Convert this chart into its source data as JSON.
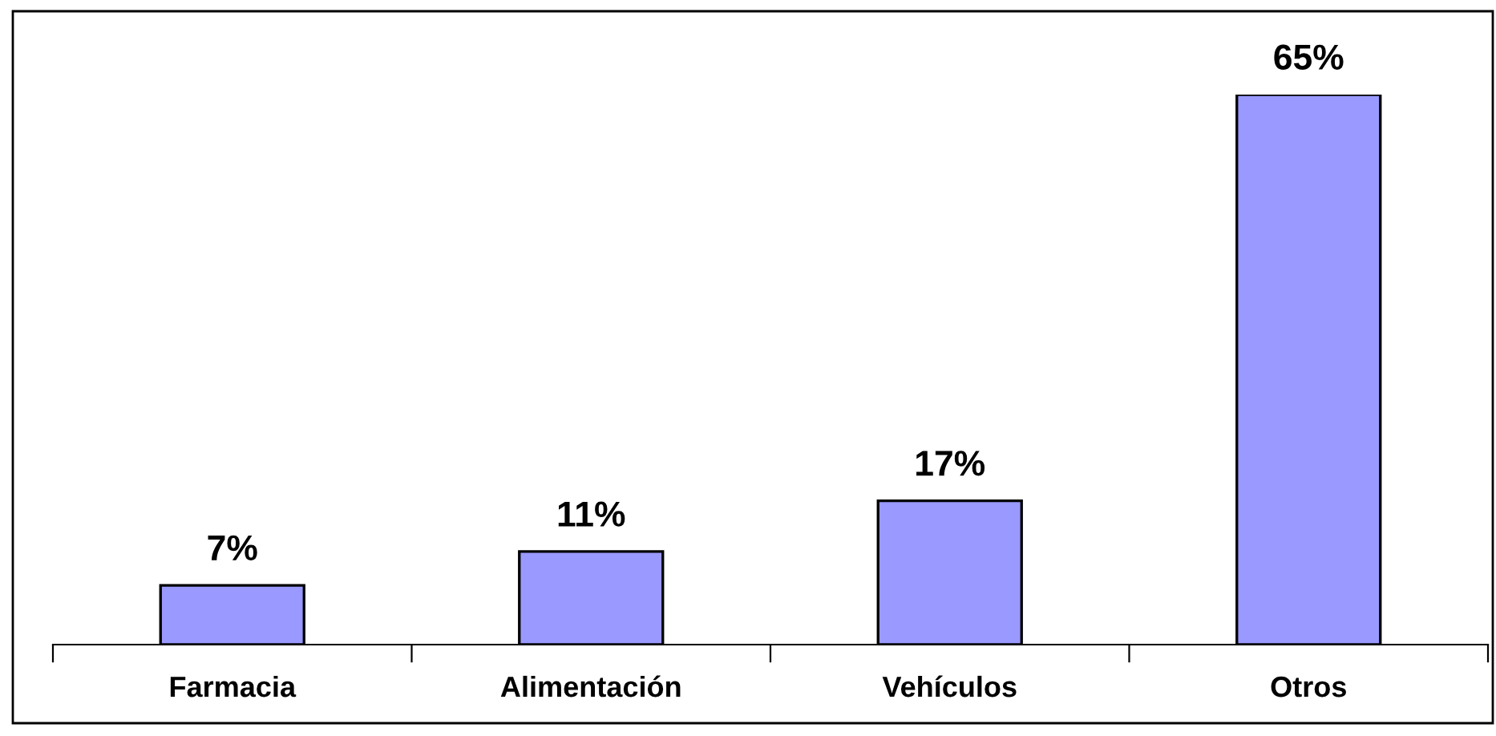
{
  "chart_data": {
    "type": "bar",
    "categories": [
      "Farmacia",
      "Alimentación",
      "Vehículos",
      "Otros"
    ],
    "values": [
      7,
      11,
      17,
      65
    ],
    "value_labels": [
      "7%",
      "11%",
      "17%",
      "65%"
    ],
    "color": "#9999ff"
  }
}
